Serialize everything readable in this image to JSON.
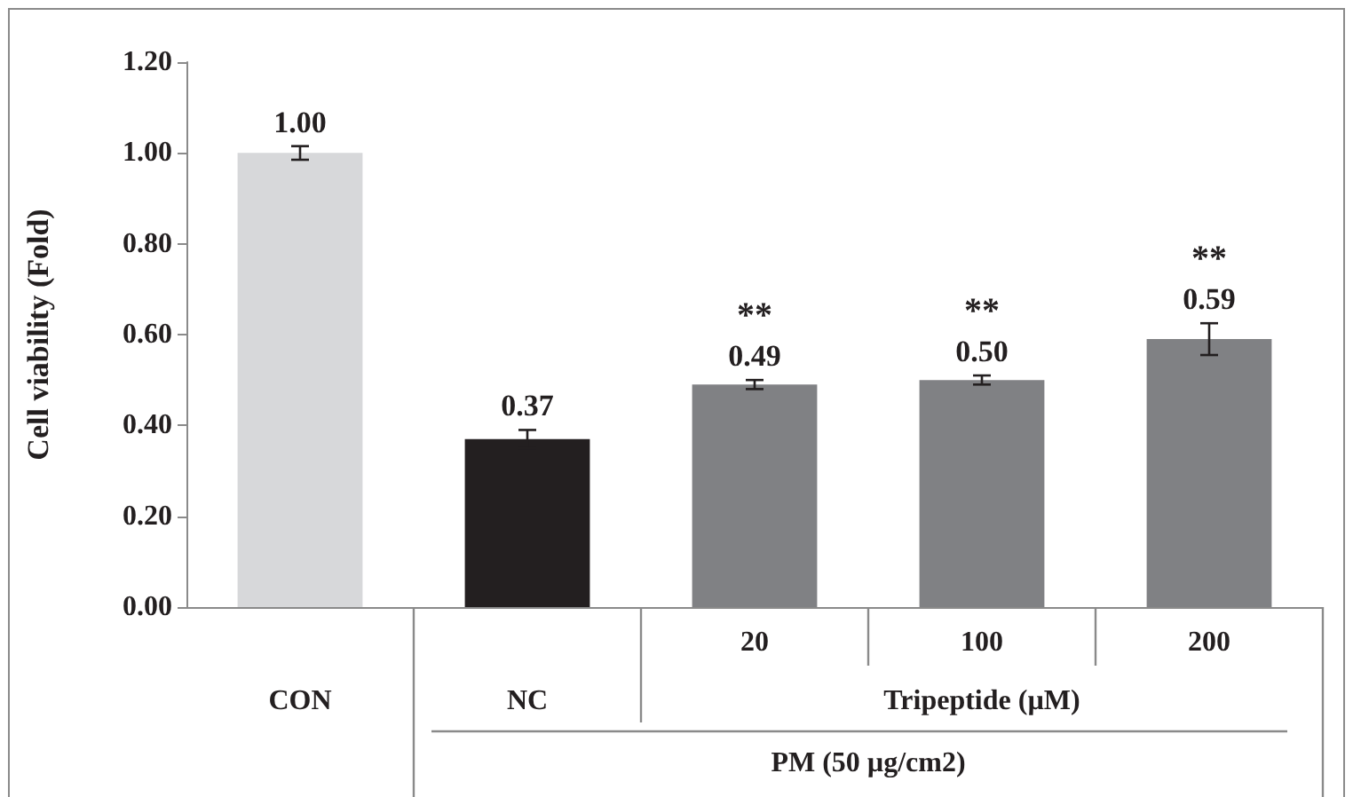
{
  "chart_data": {
    "type": "bar",
    "ylabel": "Cell viability (Fold)",
    "categories": [
      "CON",
      "NC",
      "20",
      "100",
      "200"
    ],
    "values": [
      1.0,
      0.37,
      0.49,
      0.5,
      0.59
    ],
    "colors": [
      "#d7d8da",
      "#231f20",
      "#808184",
      "#808184",
      "#808184"
    ],
    "errors": [
      0.015,
      0.02,
      0.01,
      0.01,
      0.035
    ],
    "value_labels": [
      "1.00",
      "0.37",
      "0.49",
      "0.50",
      "0.59"
    ],
    "ylim": [
      0,
      1.2
    ],
    "yticks": [
      {
        "value": 0,
        "label": "0.00"
      },
      {
        "value": 0.2,
        "label": "0.20"
      },
      {
        "value": 0.4,
        "label": "0.40"
      },
      {
        "value": 0.6,
        "label": "0.60"
      },
      {
        "value": 0.8,
        "label": "0.80"
      },
      {
        "value": 1.0,
        "label": "1.00"
      },
      {
        "value": 1.2,
        "label": "1.20"
      }
    ],
    "grid": false,
    "annotations": [
      {
        "text": "**",
        "x": "20",
        "y": 0.49
      },
      {
        "text": "**",
        "x": "100",
        "y": 0.5
      },
      {
        "text": "**",
        "x": "200",
        "y": 0.59
      },
      "Tripeptide (µM)",
      "PM (50 µg/cm2)"
    ]
  }
}
